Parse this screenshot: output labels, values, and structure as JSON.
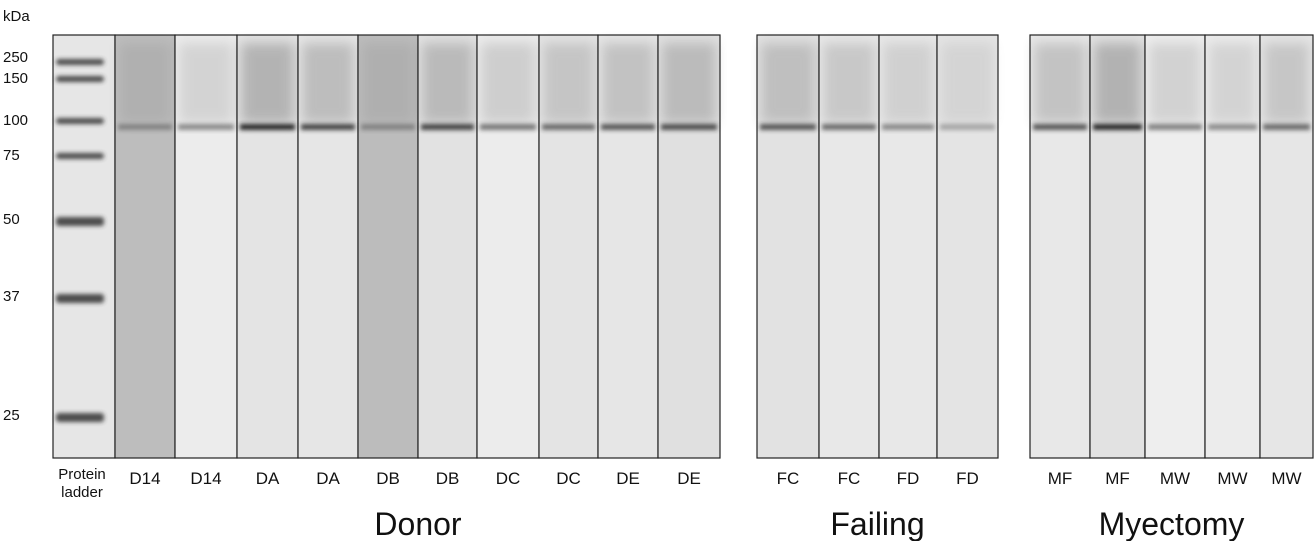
{
  "axis_unit": "kDa",
  "markers": [
    "250",
    "150",
    "100",
    "75",
    "50",
    "37",
    "25"
  ],
  "ladder_label": [
    "Protein",
    "ladder"
  ],
  "groups": [
    {
      "label": "Donor",
      "lanes": [
        "D14",
        "D14",
        "DA",
        "DA",
        "DB",
        "DB",
        "DC",
        "DC",
        "DE",
        "DE"
      ]
    },
    {
      "label": "Failing",
      "lanes": [
        "FC",
        "FC",
        "FD",
        "FD"
      ]
    },
    {
      "label": "Myectomy",
      "lanes": [
        "MF",
        "MF",
        "MW",
        "MW",
        "MW"
      ]
    }
  ]
}
